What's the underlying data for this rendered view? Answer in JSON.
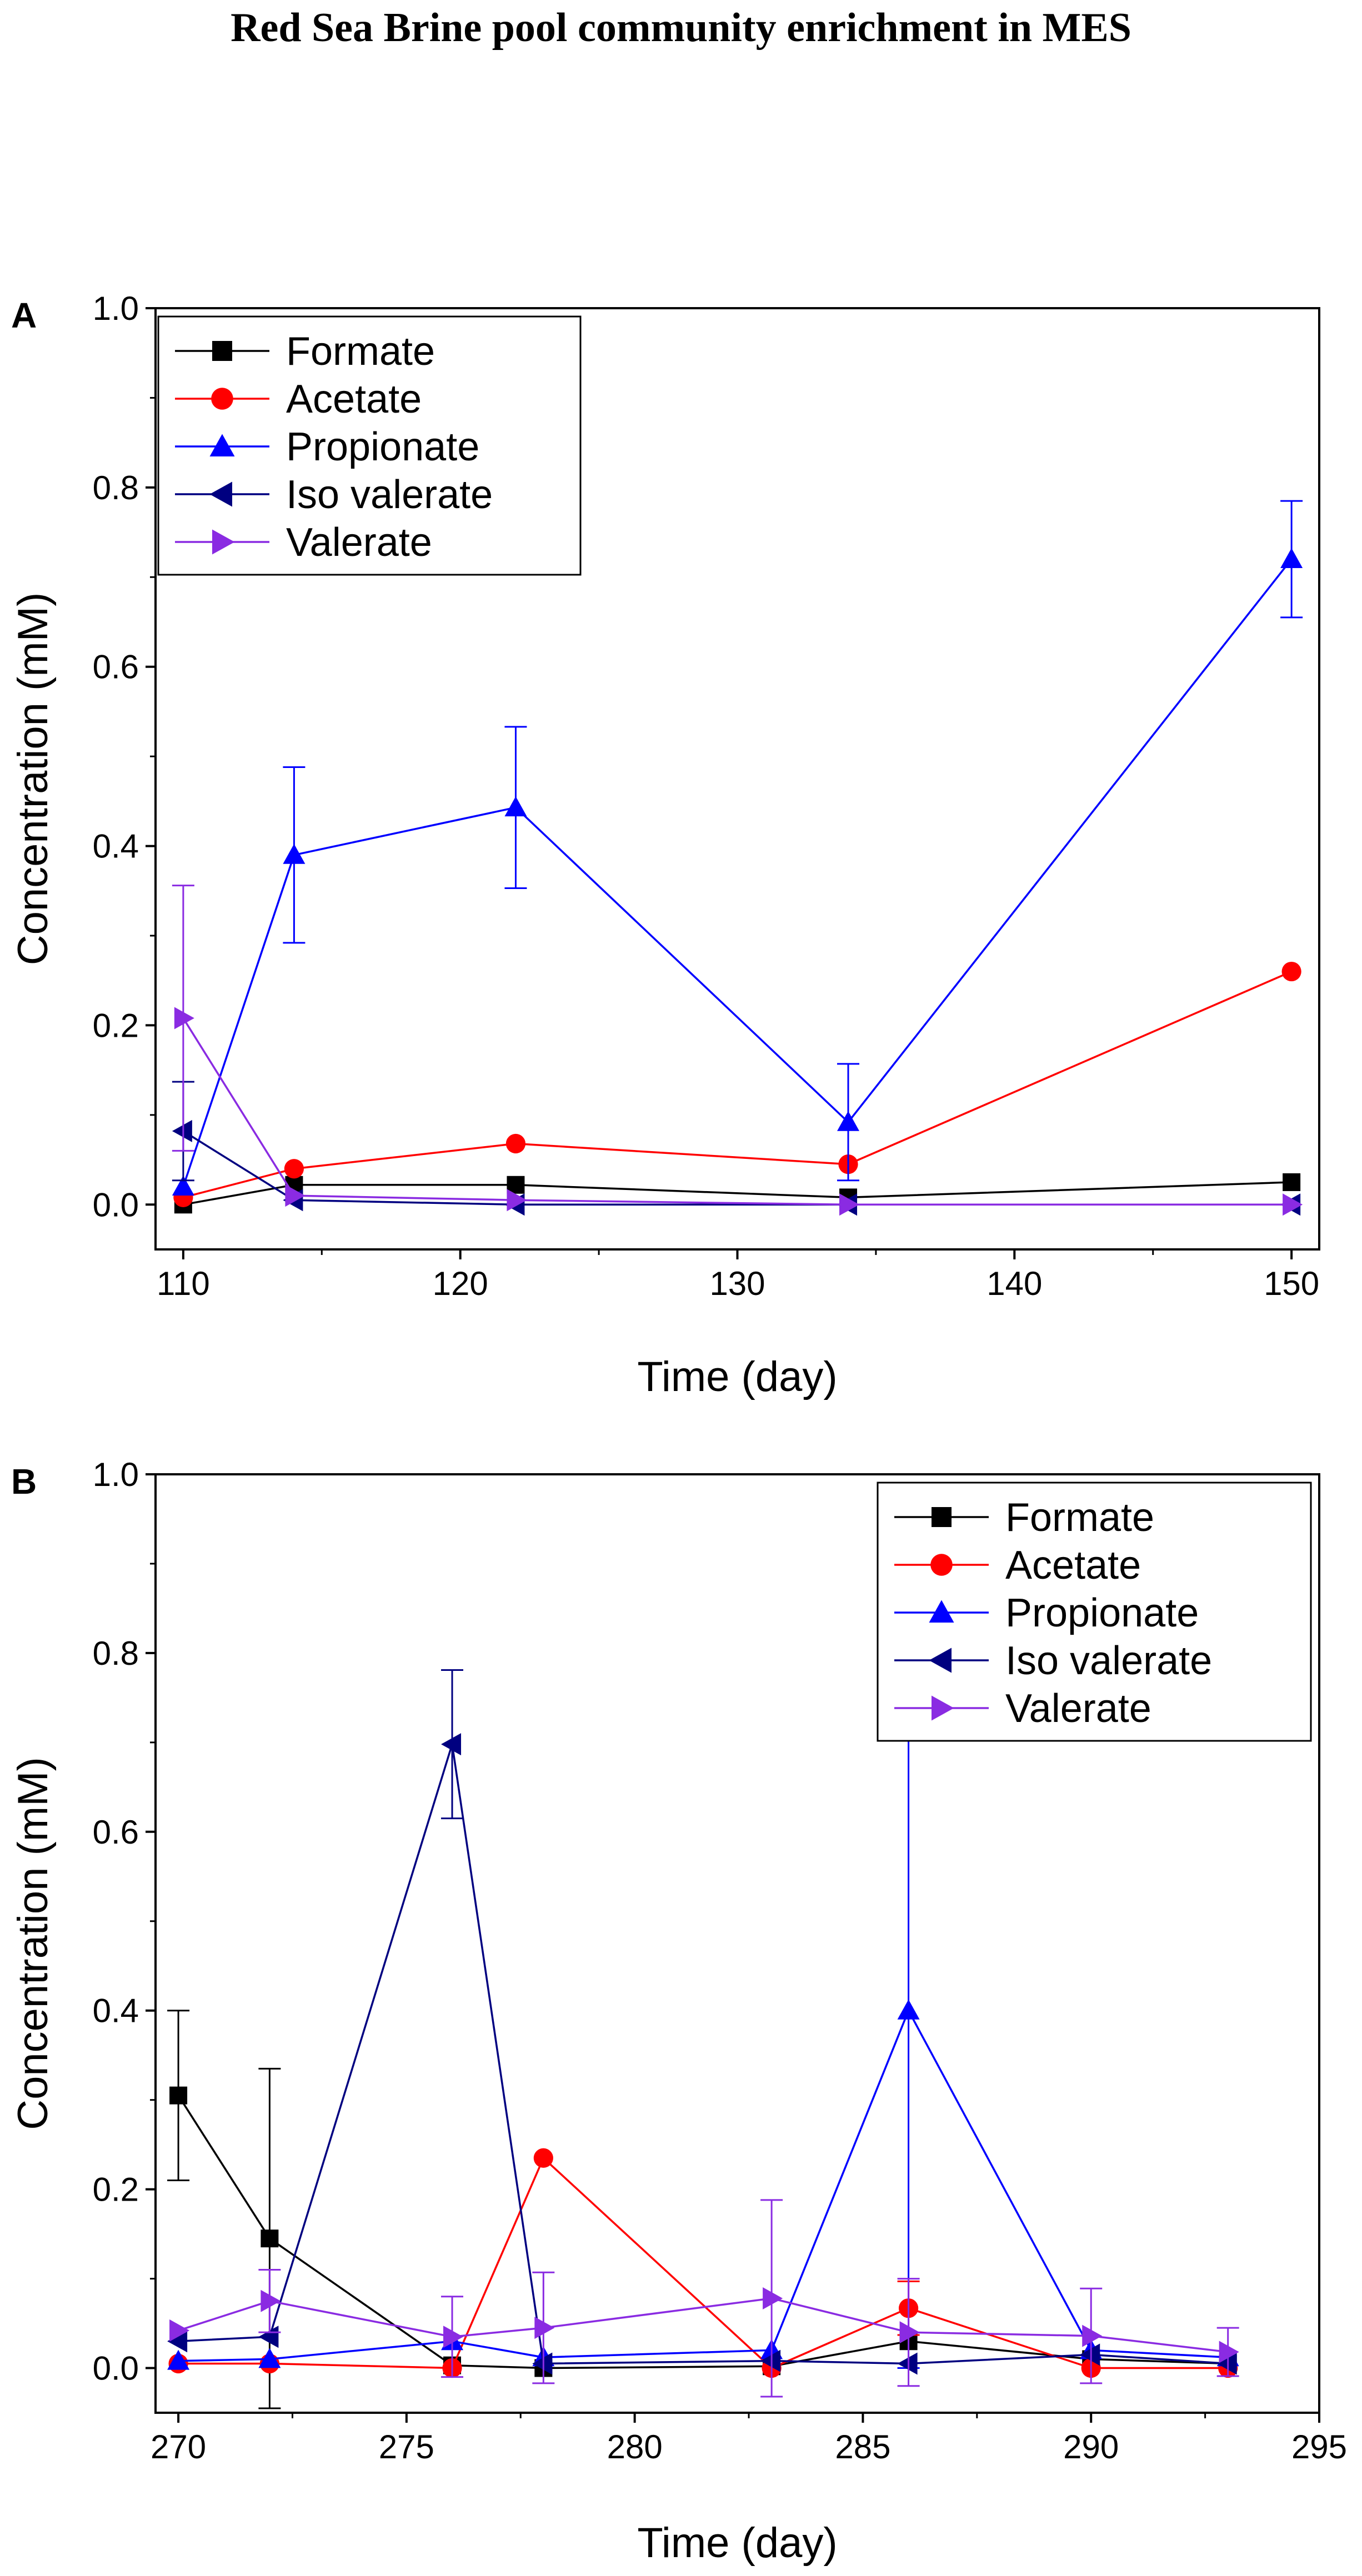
{
  "figure_title": "Red Sea Brine pool community enrichment in MES",
  "colors": {
    "Formate": "#000000",
    "Acetate": "#ff0000",
    "Propionate": "#0000ff",
    "Iso valerate": "#000080",
    "Valerate": "#8a2be2"
  },
  "chart_data": [
    {
      "panel": "A",
      "type": "line",
      "xlabel": "Time (day)",
      "ylabel": "Concentration (mM)",
      "xlim": [
        109,
        151
      ],
      "ylim": [
        -0.05,
        1.0
      ],
      "xticks": [
        110,
        120,
        130,
        140,
        150
      ],
      "yticks": [
        0.0,
        0.2,
        0.4,
        0.6,
        0.8,
        1.0
      ],
      "xtick_labels": [
        "110",
        "120",
        "130",
        "140",
        "150"
      ],
      "ytick_labels": [
        "0.0",
        "0.2",
        "0.4",
        "0.6",
        "0.8",
        "1.0"
      ],
      "legend_position": "top-left",
      "series": [
        {
          "name": "Formate",
          "marker": "square",
          "x": [
            110,
            114,
            122,
            134,
            150
          ],
          "y": [
            0.0,
            0.022,
            0.022,
            0.008,
            0.025
          ],
          "err": [
            0,
            0,
            0,
            0,
            0
          ]
        },
        {
          "name": "Acetate",
          "marker": "circle",
          "x": [
            110,
            114,
            122,
            134,
            150
          ],
          "y": [
            0.008,
            0.04,
            0.068,
            0.045,
            0.26
          ],
          "err": [
            0,
            0,
            0,
            0,
            0
          ]
        },
        {
          "name": "Propionate",
          "marker": "triangle-up",
          "x": [
            110,
            114,
            122,
            134,
            150
          ],
          "y": [
            0.02,
            0.39,
            0.443,
            0.092,
            0.72
          ],
          "err": [
            0,
            0.098,
            0.09,
            0.065,
            0.065
          ]
        },
        {
          "name": "Iso valerate",
          "marker": "triangle-left",
          "x": [
            110,
            114,
            122,
            134,
            150
          ],
          "y": [
            0.082,
            0.005,
            0.0,
            0.0,
            0.0
          ],
          "err": [
            0.055,
            0,
            0,
            0,
            0
          ]
        },
        {
          "name": "Valerate",
          "marker": "triangle-right",
          "x": [
            110,
            114,
            122,
            134,
            150
          ],
          "y": [
            0.208,
            0.01,
            0.005,
            0.0,
            0.0
          ],
          "err": [
            0.148,
            0,
            0,
            0,
            0
          ]
        }
      ]
    },
    {
      "panel": "B",
      "type": "line",
      "xlabel": "Time (day)",
      "ylabel": "Concentration (mM)",
      "xlim": [
        269.5,
        295
      ],
      "ylim": [
        -0.05,
        1.0
      ],
      "xticks": [
        270,
        275,
        280,
        285,
        290,
        295
      ],
      "yticks": [
        0.0,
        0.2,
        0.4,
        0.6,
        0.8,
        1.0
      ],
      "xtick_labels": [
        "270",
        "275",
        "280",
        "285",
        "290",
        "295"
      ],
      "ytick_labels": [
        "0.0",
        "0.2",
        "0.4",
        "0.6",
        "0.8",
        "1.0"
      ],
      "legend_position": "top-right",
      "series": [
        {
          "name": "Formate",
          "marker": "square",
          "x": [
            270,
            272,
            276,
            278,
            283,
            286,
            290,
            293
          ],
          "y": [
            0.305,
            0.145,
            0.003,
            0.0,
            0.002,
            0.03,
            0.01,
            0.005
          ],
          "err": [
            0.095,
            0.19,
            0,
            0,
            0,
            0,
            0,
            0
          ]
        },
        {
          "name": "Acetate",
          "marker": "circle",
          "x": [
            270,
            272,
            276,
            278,
            283,
            286,
            290,
            293
          ],
          "y": [
            0.005,
            0.005,
            0.0,
            0.235,
            0.0,
            0.067,
            0.0,
            0.0
          ],
          "err": [
            0,
            0,
            0,
            0,
            0,
            0.03,
            0,
            0
          ]
        },
        {
          "name": "Propionate",
          "marker": "triangle-up",
          "x": [
            270,
            272,
            276,
            278,
            283,
            286,
            290,
            293
          ],
          "y": [
            0.008,
            0.01,
            0.03,
            0.012,
            0.02,
            0.4,
            0.02,
            0.012
          ],
          "err": [
            0,
            0,
            0,
            0,
            0,
            0.4,
            0,
            0
          ]
        },
        {
          "name": "Iso valerate",
          "marker": "triangle-left",
          "x": [
            270,
            272,
            276,
            278,
            283,
            286,
            290,
            293
          ],
          "y": [
            0.03,
            0.035,
            0.698,
            0.005,
            0.008,
            0.005,
            0.015,
            0.005
          ],
          "err": [
            0,
            0,
            0.083,
            0,
            0,
            0,
            0,
            0
          ]
        },
        {
          "name": "Valerate",
          "marker": "triangle-right",
          "x": [
            270,
            272,
            276,
            278,
            283,
            286,
            290,
            293
          ],
          "y": [
            0.042,
            0.075,
            0.035,
            0.045,
            0.078,
            0.04,
            0.036,
            0.018
          ],
          "err": [
            0,
            0.035,
            0.045,
            0.062,
            0.11,
            0.06,
            0.053,
            0.027
          ]
        }
      ]
    }
  ]
}
